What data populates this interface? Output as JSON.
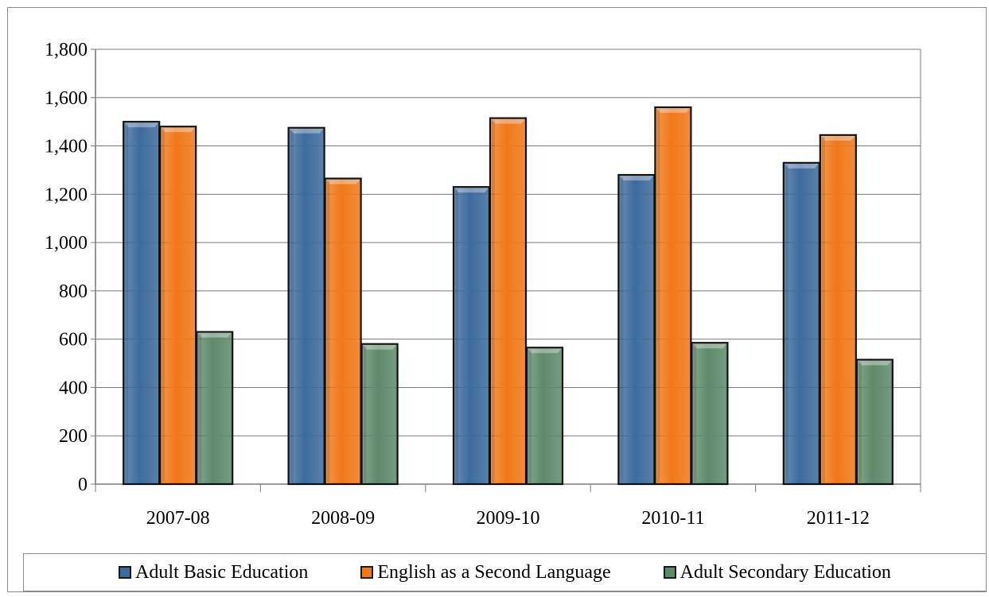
{
  "chart_data": {
    "type": "bar",
    "categories": [
      "2007-08",
      "2008-09",
      "2009-10",
      "2010-11",
      "2011-12"
    ],
    "series": [
      {
        "name": "Adult Basic Education",
        "color": "#3d6a9e",
        "values": [
          1500,
          1475,
          1230,
          1280,
          1330
        ]
      },
      {
        "name": "English as a Second Language",
        "color": "#f07818",
        "values": [
          1480,
          1265,
          1515,
          1560,
          1445
        ]
      },
      {
        "name": "Adult Secondary Education",
        "color": "#5e8a6a",
        "values": [
          630,
          580,
          565,
          585,
          515
        ]
      }
    ],
    "yticks": [
      "0",
      "200",
      "400",
      "600",
      "800",
      "1,000",
      "1,200",
      "1,400",
      "1,600",
      "1,800"
    ],
    "ylim": [
      0,
      1800
    ],
    "grid": true,
    "legend_position": "bottom"
  }
}
